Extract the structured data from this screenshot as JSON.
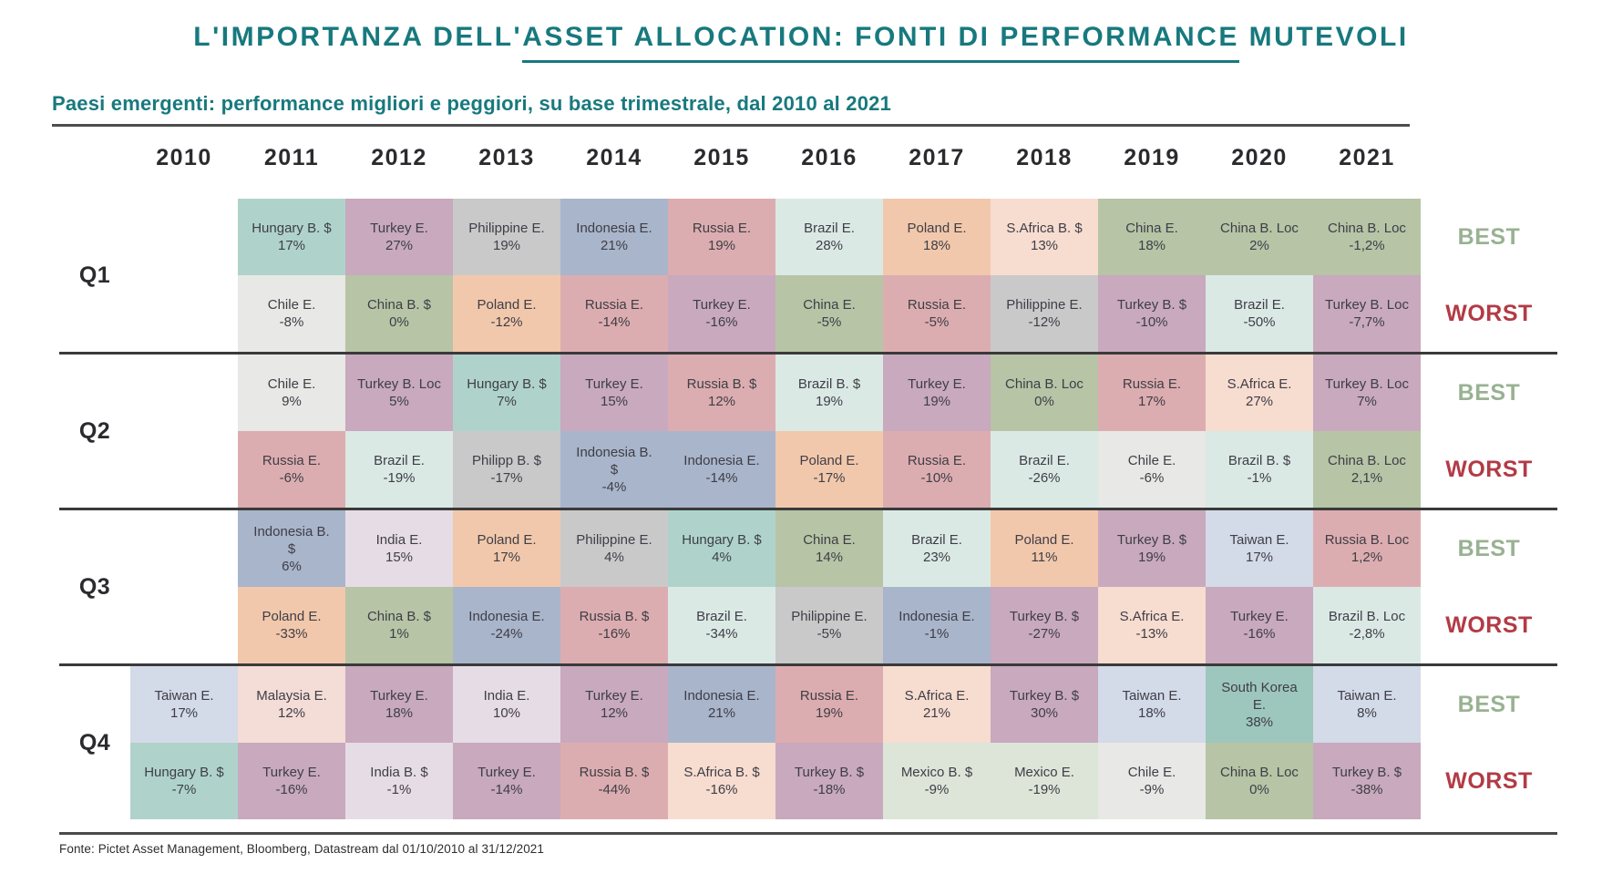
{
  "title": {
    "prefix": "L'IMPORTANZA DELL'",
    "underlined": "ASSET ALLOCATION: FONTI DI PERFORMANCE",
    "suffix": " MUTEVOLI"
  },
  "subtitle": "Paesi emergenti: performance migliori e peggiori, su base trimestrale, dal 2010 al 2021",
  "side_labels": {
    "best": "BEST",
    "worst": "WORST"
  },
  "footer": {
    "source": "Fonte: Pictet Asset Management, Bloomberg, Datastream dal 01/10/2010 al 31/12/2021"
  },
  "colors": {
    "accent_teal": "#17797e",
    "best_green": "#98b292",
    "worst_red": "#b23b45",
    "separator": "#3a3a3a",
    "palette": {
      "hungary": "#afd3cb",
      "turkey": "#c8a9bd",
      "philippines": "#c9c9ca",
      "indonesia": "#a9b5cb",
      "russia": "#dcadb0",
      "brazil": "#dbe9e5",
      "poland": "#f2c8ac",
      "safrica": "#f7dcd0",
      "china": "#b7c4a6",
      "chile": "#e8e8e6",
      "india": "#e6dce5",
      "taiwan": "#d3dae8",
      "mexico": "#dde5d9",
      "malaysia": "#f4dcd7",
      "southkorea": "#9dc6bd"
    }
  },
  "chart_data": {
    "type": "table",
    "title": "L'IMPORTANZA DELL'ASSET ALLOCATION: FONTI DI PERFORMANCE MUTEVOLI",
    "subtitle": "Paesi emergenti: performance migliori e peggiori, su base trimestrale, dal 2010 al 2021",
    "years": [
      "2010",
      "2011",
      "2012",
      "2013",
      "2014",
      "2015",
      "2016",
      "2017",
      "2018",
      "2019",
      "2020",
      "2021"
    ],
    "quarters": [
      {
        "label": "Q1",
        "best": [
          null,
          {
            "n": "Hungary B. $",
            "v": "17%",
            "c": "hungary"
          },
          {
            "n": "Turkey E.",
            "v": "27%",
            "c": "turkey"
          },
          {
            "n": "Philippine E.",
            "v": "19%",
            "c": "philippines"
          },
          {
            "n": "Indonesia E.",
            "v": "21%",
            "c": "indonesia"
          },
          {
            "n": "Russia E.",
            "v": "19%",
            "c": "russia"
          },
          {
            "n": "Brazil E.",
            "v": "28%",
            "c": "brazil"
          },
          {
            "n": "Poland E.",
            "v": "18%",
            "c": "poland"
          },
          {
            "n": "S.Africa B. $",
            "v": "13%",
            "c": "safrica"
          },
          {
            "n": "China E.",
            "v": "18%",
            "c": "china"
          },
          {
            "n": "China B. Loc",
            "v": "2%",
            "c": "china"
          },
          {
            "n": "China B. Loc",
            "v": "-1,2%",
            "c": "china"
          }
        ],
        "worst": [
          null,
          {
            "n": "Chile E.",
            "v": "-8%",
            "c": "chile"
          },
          {
            "n": "China B. $",
            "v": "0%",
            "c": "china"
          },
          {
            "n": "Poland E.",
            "v": "-12%",
            "c": "poland"
          },
          {
            "n": "Russia E.",
            "v": "-14%",
            "c": "russia"
          },
          {
            "n": "Turkey E.",
            "v": "-16%",
            "c": "turkey"
          },
          {
            "n": "China E.",
            "v": "-5%",
            "c": "china"
          },
          {
            "n": "Russia E.",
            "v": "-5%",
            "c": "russia"
          },
          {
            "n": "Philippine E.",
            "v": "-12%",
            "c": "philippines"
          },
          {
            "n": "Turkey B. $",
            "v": "-10%",
            "c": "turkey"
          },
          {
            "n": "Brazil E.",
            "v": "-50%",
            "c": "brazil"
          },
          {
            "n": "Turkey B. Loc",
            "v": "-7,7%",
            "c": "turkey"
          }
        ]
      },
      {
        "label": "Q2",
        "best": [
          null,
          {
            "n": "Chile E.",
            "v": "9%",
            "c": "chile"
          },
          {
            "n": "Turkey B. Loc",
            "v": "5%",
            "c": "turkey"
          },
          {
            "n": "Hungary B. $",
            "v": "7%",
            "c": "hungary"
          },
          {
            "n": "Turkey E.",
            "v": "15%",
            "c": "turkey"
          },
          {
            "n": "Russia B. $",
            "v": "12%",
            "c": "russia"
          },
          {
            "n": "Brazil B. $",
            "v": "19%",
            "c": "brazil"
          },
          {
            "n": "Turkey E.",
            "v": "19%",
            "c": "turkey"
          },
          {
            "n": "China B. Loc",
            "v": "0%",
            "c": "china"
          },
          {
            "n": "Russia E.",
            "v": "17%",
            "c": "russia"
          },
          {
            "n": "S.Africa E.",
            "v": "27%",
            "c": "safrica"
          },
          {
            "n": "Turkey B. Loc",
            "v": "7%",
            "c": "turkey"
          }
        ],
        "worst": [
          null,
          {
            "n": "Russia E.",
            "v": "-6%",
            "c": "russia"
          },
          {
            "n": "Brazil E.",
            "v": "-19%",
            "c": "brazil"
          },
          {
            "n": "Philipp B. $",
            "v": "-17%",
            "c": "philippines"
          },
          {
            "n": "Indonesia B.\n$",
            "v": "-4%",
            "c": "indonesia"
          },
          {
            "n": "Indonesia E.",
            "v": "-14%",
            "c": "indonesia"
          },
          {
            "n": "Poland E.",
            "v": "-17%",
            "c": "poland"
          },
          {
            "n": "Russia E.",
            "v": "-10%",
            "c": "russia"
          },
          {
            "n": "Brazil E.",
            "v": "-26%",
            "c": "brazil"
          },
          {
            "n": "Chile E.",
            "v": "-6%",
            "c": "chile"
          },
          {
            "n": "Brazil B. $",
            "v": "-1%",
            "c": "brazil"
          },
          {
            "n": "China B. Loc",
            "v": "2,1%",
            "c": "china"
          }
        ]
      },
      {
        "label": "Q3",
        "best": [
          null,
          {
            "n": "Indonesia B.\n$",
            "v": "6%",
            "c": "indonesia"
          },
          {
            "n": "India E.",
            "v": "15%",
            "c": "india"
          },
          {
            "n": "Poland E.",
            "v": "17%",
            "c": "poland"
          },
          {
            "n": "Philippine E.",
            "v": "4%",
            "c": "philippines"
          },
          {
            "n": "Hungary B. $",
            "v": "4%",
            "c": "hungary"
          },
          {
            "n": "China E.",
            "v": "14%",
            "c": "china"
          },
          {
            "n": "Brazil E.",
            "v": "23%",
            "c": "brazil"
          },
          {
            "n": "Poland E.",
            "v": "11%",
            "c": "poland"
          },
          {
            "n": "Turkey B. $",
            "v": "19%",
            "c": "turkey"
          },
          {
            "n": "Taiwan E.",
            "v": "17%",
            "c": "taiwan"
          },
          {
            "n": "Russia B. Loc",
            "v": "1,2%",
            "c": "russia"
          }
        ],
        "worst": [
          null,
          {
            "n": "Poland E.",
            "v": "-33%",
            "c": "poland"
          },
          {
            "n": "China B. $",
            "v": "1%",
            "c": "china"
          },
          {
            "n": "Indonesia E.",
            "v": "-24%",
            "c": "indonesia"
          },
          {
            "n": "Russia B. $",
            "v": "-16%",
            "c": "russia"
          },
          {
            "n": "Brazil E.",
            "v": "-34%",
            "c": "brazil"
          },
          {
            "n": "Philippine E.",
            "v": "-5%",
            "c": "philippines"
          },
          {
            "n": "Indonesia E.",
            "v": "-1%",
            "c": "indonesia"
          },
          {
            "n": "Turkey B. $",
            "v": "-27%",
            "c": "turkey"
          },
          {
            "n": "S.Africa E.",
            "v": "-13%",
            "c": "safrica"
          },
          {
            "n": "Turkey E.",
            "v": "-16%",
            "c": "turkey"
          },
          {
            "n": "Brazil B. Loc",
            "v": "-2,8%",
            "c": "brazil"
          }
        ]
      },
      {
        "label": "Q4",
        "best": [
          {
            "n": "Taiwan E.",
            "v": "17%",
            "c": "taiwan"
          },
          {
            "n": "Malaysia E.",
            "v": "12%",
            "c": "malaysia"
          },
          {
            "n": "Turkey E.",
            "v": "18%",
            "c": "turkey"
          },
          {
            "n": "India E.",
            "v": "10%",
            "c": "india"
          },
          {
            "n": "Turkey E.",
            "v": "12%",
            "c": "turkey"
          },
          {
            "n": "Indonesia E.",
            "v": "21%",
            "c": "indonesia"
          },
          {
            "n": "Russia E.",
            "v": "19%",
            "c": "russia"
          },
          {
            "n": "S.Africa E.",
            "v": "21%",
            "c": "safrica"
          },
          {
            "n": "Turkey B. $",
            "v": "30%",
            "c": "turkey"
          },
          {
            "n": "Taiwan E.",
            "v": "18%",
            "c": "taiwan"
          },
          {
            "n": "South Korea\nE.",
            "v": "38%",
            "c": "southkorea"
          },
          {
            "n": "Taiwan E.",
            "v": "8%",
            "c": "taiwan"
          }
        ],
        "worst": [
          {
            "n": "Hungary B. $",
            "v": "-7%",
            "c": "hungary"
          },
          {
            "n": "Turkey E.",
            "v": "-16%",
            "c": "turkey"
          },
          {
            "n": "India B. $",
            "v": "-1%",
            "c": "india"
          },
          {
            "n": "Turkey E.",
            "v": "-14%",
            "c": "turkey"
          },
          {
            "n": "Russia B. $",
            "v": "-44%",
            "c": "russia"
          },
          {
            "n": "S.Africa B. $",
            "v": "-16%",
            "c": "safrica"
          },
          {
            "n": "Turkey B. $",
            "v": "-18%",
            "c": "turkey"
          },
          {
            "n": "Mexico B. $",
            "v": "-9%",
            "c": "mexico"
          },
          {
            "n": "Mexico E.",
            "v": "-19%",
            "c": "mexico"
          },
          {
            "n": "Chile E.",
            "v": "-9%",
            "c": "chile"
          },
          {
            "n": "China B. Loc",
            "v": "0%",
            "c": "china"
          },
          {
            "n": "Turkey B. $",
            "v": "-38%",
            "c": "turkey"
          }
        ]
      }
    ]
  }
}
